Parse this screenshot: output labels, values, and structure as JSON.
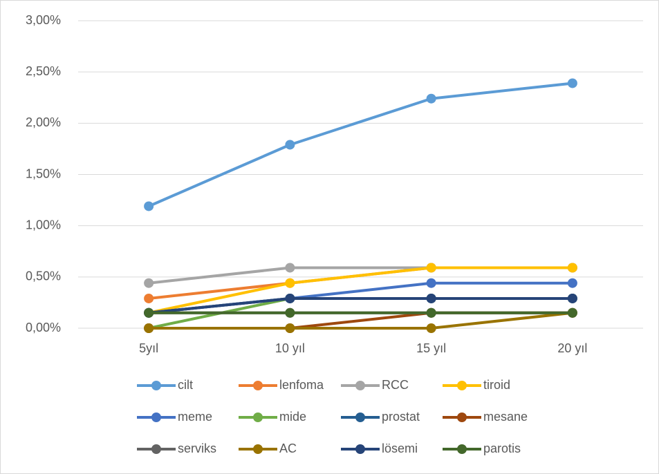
{
  "chart_data": {
    "type": "line",
    "categories": [
      "5yıl",
      "10 yıl",
      "15 yıl",
      "20 yıl"
    ],
    "ylim": [
      0,
      3
    ],
    "yticks": [
      {
        "value": 0,
        "label": "0,00%"
      },
      {
        "value": 0.5,
        "label": "0,50%"
      },
      {
        "value": 1,
        "label": "1,00%"
      },
      {
        "value": 1.5,
        "label": "1,50%"
      },
      {
        "value": 2,
        "label": "2,00%"
      },
      {
        "value": 2.5,
        "label": "2,50%"
      },
      {
        "value": 3,
        "label": "3,00%"
      }
    ],
    "grid": true,
    "legend": "bottom",
    "series": [
      {
        "name": "cilt",
        "color": "#5b9bd5",
        "values": [
          1.19,
          1.79,
          2.24,
          2.39
        ]
      },
      {
        "name": "lenfoma",
        "color": "#ed7d31",
        "values": [
          0.29,
          0.44,
          0.59,
          0.59
        ]
      },
      {
        "name": "RCC",
        "color": "#a5a5a5",
        "values": [
          0.44,
          0.59,
          0.59,
          0.59
        ]
      },
      {
        "name": "tiroid",
        "color": "#ffc000",
        "values": [
          0.15,
          0.44,
          0.59,
          0.59
        ]
      },
      {
        "name": "meme",
        "color": "#4472c4",
        "values": [
          0.15,
          0.29,
          0.44,
          0.44
        ]
      },
      {
        "name": "mide",
        "color": "#70ad47",
        "values": [
          0,
          0.29,
          0.29,
          0.29
        ]
      },
      {
        "name": "prostat",
        "color": "#255e91",
        "values": [
          0.15,
          0.29,
          0.29,
          0.29
        ]
      },
      {
        "name": "mesane",
        "color": "#9e480e",
        "values": [
          0,
          0,
          0.15,
          0.15
        ]
      },
      {
        "name": "serviks",
        "color": "#636363",
        "values": [
          0.15,
          0.15,
          0.15,
          0.15
        ]
      },
      {
        "name": "AC",
        "color": "#997300",
        "values": [
          0,
          0,
          0,
          0.15
        ]
      },
      {
        "name": "lösemi",
        "color": "#264478",
        "values": [
          0.15,
          0.29,
          0.29,
          0.29
        ]
      },
      {
        "name": "parotis",
        "color": "#43682b",
        "values": [
          0.15,
          0.15,
          0.15,
          0.15
        ]
      }
    ]
  }
}
